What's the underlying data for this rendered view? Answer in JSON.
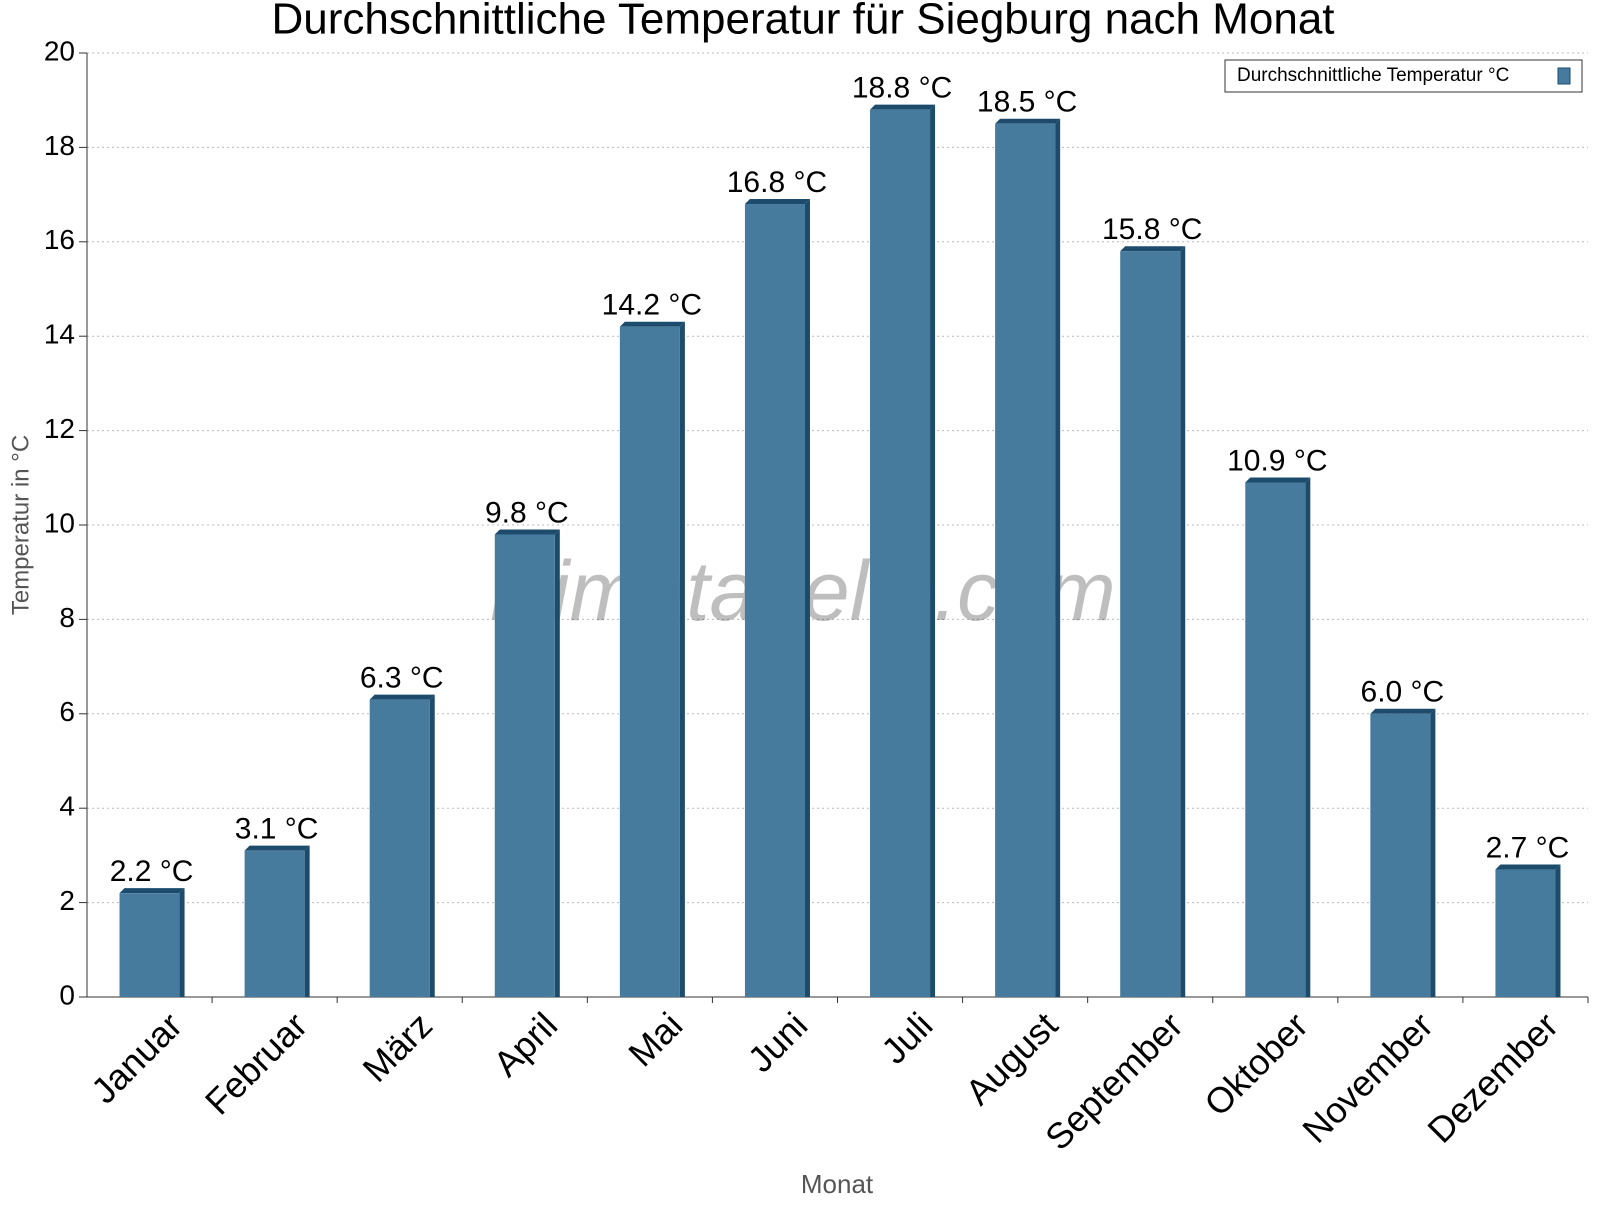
{
  "chart_data": {
    "type": "bar",
    "title": "Durchschnittliche Temperatur für Siegburg nach Monat",
    "x_label": "Monat",
    "y_label": "Temperatur in °C",
    "watermark": "klimatabelle.com",
    "categories": [
      "Januar",
      "Februar",
      "März",
      "April",
      "Mai",
      "Juni",
      "Juli",
      "August",
      "September",
      "Oktober",
      "November",
      "Dezember"
    ],
    "series": [
      {
        "name": "Durchschnittliche Temperatur °C",
        "color": "#467b9e",
        "values": [
          2.2,
          3.1,
          6.3,
          9.8,
          14.2,
          16.8,
          18.8,
          18.5,
          15.8,
          10.9,
          6.0,
          2.7
        ],
        "value_labels": [
          "2.2 °C",
          "3.1 °C",
          "6.3 °C",
          "9.8 °C",
          "14.2 °C",
          "16.8 °C",
          "18.8 °C",
          "18.5 °C",
          "15.8 °C",
          "10.9 °C",
          "6.0 °C",
          "2.7 °C"
        ]
      }
    ],
    "ylim": [
      0,
      20
    ],
    "yticks": [
      0,
      2,
      4,
      6,
      8,
      10,
      12,
      14,
      16,
      18,
      20
    ],
    "grid": true,
    "legend": "top-right"
  }
}
